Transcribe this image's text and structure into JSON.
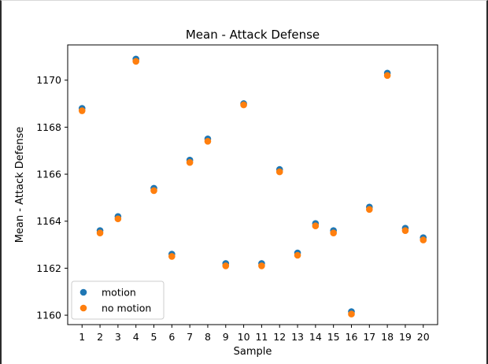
{
  "chart_data": {
    "type": "scatter",
    "title": "Mean - Attack Defense",
    "xlabel": "Sample",
    "ylabel": "Mean - Attack Defense",
    "categories": [
      "1",
      "2",
      "3",
      "4",
      "5",
      "6",
      "7",
      "8",
      "9",
      "10",
      "11",
      "12",
      "13",
      "14",
      "15",
      "16",
      "17",
      "18",
      "19",
      "20"
    ],
    "x": [
      1,
      2,
      3,
      4,
      5,
      6,
      7,
      8,
      9,
      10,
      11,
      12,
      13,
      14,
      15,
      16,
      17,
      18,
      19,
      20
    ],
    "xlim": [
      0.2,
      20.8
    ],
    "ylim": [
      1159.6,
      1171.5
    ],
    "yticks": [
      1160,
      1162,
      1164,
      1166,
      1168,
      1170
    ],
    "grid": false,
    "legend_position": "lower-left",
    "series": [
      {
        "name": "motion",
        "color": "#1f77b4",
        "values": [
          1168.8,
          1163.6,
          1164.2,
          1170.9,
          1165.4,
          1162.6,
          1166.6,
          1167.5,
          1162.2,
          1169.0,
          1162.2,
          1166.2,
          1162.65,
          1163.9,
          1163.6,
          1160.15,
          1164.6,
          1170.3,
          1163.7,
          1163.3
        ]
      },
      {
        "name": "no motion",
        "color": "#ff7f0e",
        "values": [
          1168.7,
          1163.5,
          1164.1,
          1170.8,
          1165.3,
          1162.5,
          1166.5,
          1167.4,
          1162.1,
          1168.95,
          1162.1,
          1166.1,
          1162.55,
          1163.8,
          1163.5,
          1160.05,
          1164.5,
          1170.2,
          1163.6,
          1163.2
        ]
      }
    ]
  }
}
